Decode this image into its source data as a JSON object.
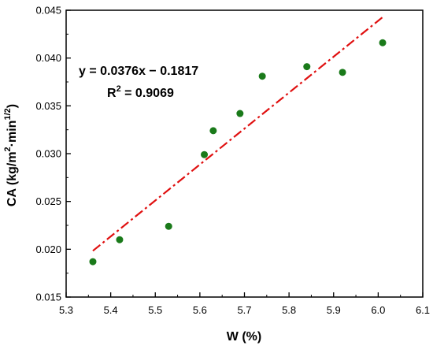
{
  "chart_data": {
    "type": "scatter",
    "xlabel": "W (%)",
    "ylabel_main": "CA (kg/m",
    "ylabel_sup1": "2",
    "ylabel_mid": "·min",
    "ylabel_sup2": "1/2",
    "ylabel_end": ")",
    "xlim": [
      5.3,
      6.1
    ],
    "ylim": [
      0.015,
      0.045
    ],
    "x_ticks": [
      5.3,
      5.4,
      5.5,
      5.6,
      5.7,
      5.8,
      5.9,
      6.0,
      6.1
    ],
    "x_tick_labels": [
      "5.3",
      "5.4",
      "5.5",
      "5.6",
      "5.7",
      "5.8",
      "5.9",
      "6.0",
      "6.1"
    ],
    "y_ticks": [
      0.015,
      0.02,
      0.025,
      0.03,
      0.035,
      0.04,
      0.045
    ],
    "y_tick_labels": [
      "0.015",
      "0.020",
      "0.025",
      "0.030",
      "0.035",
      "0.040",
      "0.045"
    ],
    "grid": false,
    "series": [
      {
        "type": "scatter",
        "color": "#1a7a1a",
        "points": [
          {
            "x": 5.36,
            "y": 0.0187
          },
          {
            "x": 5.42,
            "y": 0.021
          },
          {
            "x": 5.53,
            "y": 0.0224
          },
          {
            "x": 5.61,
            "y": 0.0299
          },
          {
            "x": 5.63,
            "y": 0.0324
          },
          {
            "x": 5.69,
            "y": 0.0342
          },
          {
            "x": 5.74,
            "y": 0.0381
          },
          {
            "x": 5.84,
            "y": 0.0391
          },
          {
            "x": 5.92,
            "y": 0.0385
          },
          {
            "x": 6.01,
            "y": 0.0416
          }
        ]
      },
      {
        "type": "line",
        "style": "dash-dot",
        "color": "#e01010",
        "fit": {
          "slope": 0.0376,
          "intercept": -0.1817
        },
        "x_range": [
          5.36,
          6.01
        ]
      }
    ],
    "annotation": {
      "equation": "y = 0.0376x − 0.1817",
      "r2_prefix": "R",
      "r2_sup": "2",
      "r2_value": " = 0.9069"
    }
  }
}
